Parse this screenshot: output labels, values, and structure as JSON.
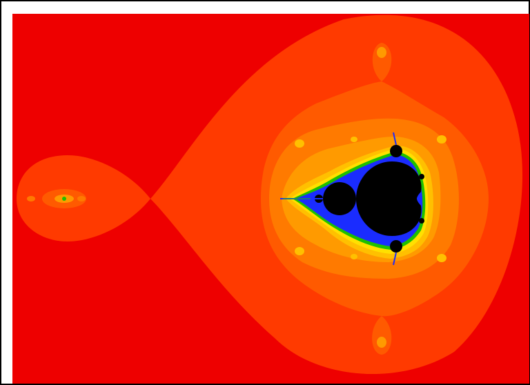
{
  "image": {
    "subject": "mandelbrot-set-fractal",
    "colors": {
      "background": "#ee0000",
      "band1": "#ff3a00",
      "band2": "#ff5a00",
      "band3": "#ff7a00",
      "band4": "#ff9a00",
      "band5": "#ffc000",
      "band6": "#ffe000",
      "edge_green": "#1ec000",
      "edge_blue": "#1a2cff",
      "set": "#000000"
    }
  }
}
